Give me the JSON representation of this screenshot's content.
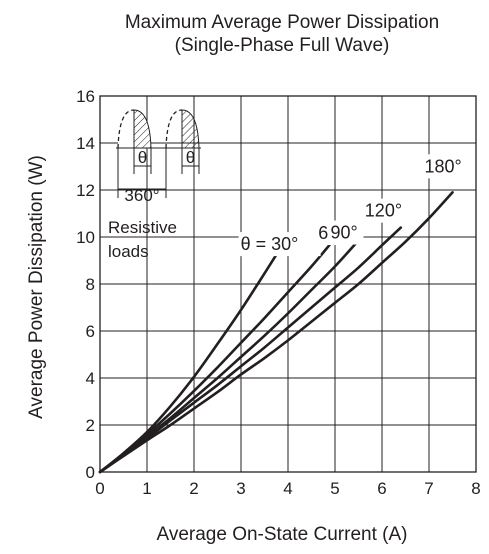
{
  "chart_data": {
    "type": "line",
    "title": "Maximum Average Power Dissipation",
    "subtitle": "(Single-Phase Full Wave)",
    "xlabel": "Average On-State Current  (A)",
    "ylabel": "Average Power Dissipation  (W)",
    "xlim": [
      0,
      8
    ],
    "ylim": [
      0,
      16
    ],
    "xticks": [
      "0",
      "1",
      "2",
      "3",
      "4",
      "5",
      "6",
      "7",
      "8"
    ],
    "yticks": [
      "0",
      "2",
      "4",
      "6",
      "8",
      "10",
      "12",
      "14",
      "16"
    ],
    "grid": true,
    "series": [
      {
        "name": "θ = 30°",
        "points": [
          [
            0,
            0
          ],
          [
            0.5,
            0.8
          ],
          [
            1,
            1.7
          ],
          [
            1.5,
            2.8
          ],
          [
            2,
            4.05
          ],
          [
            2.5,
            5.45
          ],
          [
            3,
            6.9
          ],
          [
            3.5,
            8.45
          ],
          [
            3.8,
            9.4
          ]
        ]
      },
      {
        "name": "60°",
        "points": [
          [
            0,
            0
          ],
          [
            0.5,
            0.75
          ],
          [
            1,
            1.6
          ],
          [
            1.5,
            2.5
          ],
          [
            2,
            3.45
          ],
          [
            2.5,
            4.45
          ],
          [
            3,
            5.5
          ],
          [
            3.5,
            6.55
          ],
          [
            4,
            7.65
          ],
          [
            4.5,
            8.75
          ],
          [
            4.9,
            9.7
          ]
        ]
      },
      {
        "name": "90°",
        "points": [
          [
            0,
            0
          ],
          [
            0.5,
            0.72
          ],
          [
            1,
            1.5
          ],
          [
            1.5,
            2.3
          ],
          [
            2,
            3.15
          ],
          [
            2.5,
            4.0
          ],
          [
            3,
            4.9
          ],
          [
            3.5,
            5.8
          ],
          [
            4,
            6.75
          ],
          [
            4.5,
            7.75
          ],
          [
            5,
            8.75
          ],
          [
            5.5,
            9.85
          ]
        ]
      },
      {
        "name": "120°",
        "points": [
          [
            0,
            0
          ],
          [
            0.5,
            0.7
          ],
          [
            1,
            1.43
          ],
          [
            1.5,
            2.2
          ],
          [
            2,
            2.95
          ],
          [
            2.5,
            3.7
          ],
          [
            3,
            4.5
          ],
          [
            3.5,
            5.3
          ],
          [
            4,
            6.15
          ],
          [
            4.5,
            7.0
          ],
          [
            5,
            7.85
          ],
          [
            5.5,
            8.7
          ],
          [
            6,
            9.65
          ],
          [
            6.4,
            10.4
          ]
        ]
      },
      {
        "name": "180°",
        "points": [
          [
            0,
            0
          ],
          [
            0.5,
            0.68
          ],
          [
            1,
            1.35
          ],
          [
            1.5,
            2.0
          ],
          [
            2,
            2.7
          ],
          [
            2.5,
            3.4
          ],
          [
            3,
            4.15
          ],
          [
            3.5,
            4.85
          ],
          [
            4,
            5.6
          ],
          [
            4.5,
            6.4
          ],
          [
            5,
            7.2
          ],
          [
            5.5,
            8.0
          ],
          [
            6,
            8.9
          ],
          [
            6.5,
            9.8
          ],
          [
            7,
            10.8
          ],
          [
            7.5,
            11.9
          ]
        ]
      }
    ],
    "annotations": {
      "inset_theta_left": "θ",
      "inset_theta_right": "θ",
      "inset_period": "360°",
      "load_line1": "Resistive",
      "load_line2": "loads"
    },
    "colors": {
      "line": "#231f20",
      "grid": "#231f20",
      "hatch": "#231f20"
    }
  }
}
